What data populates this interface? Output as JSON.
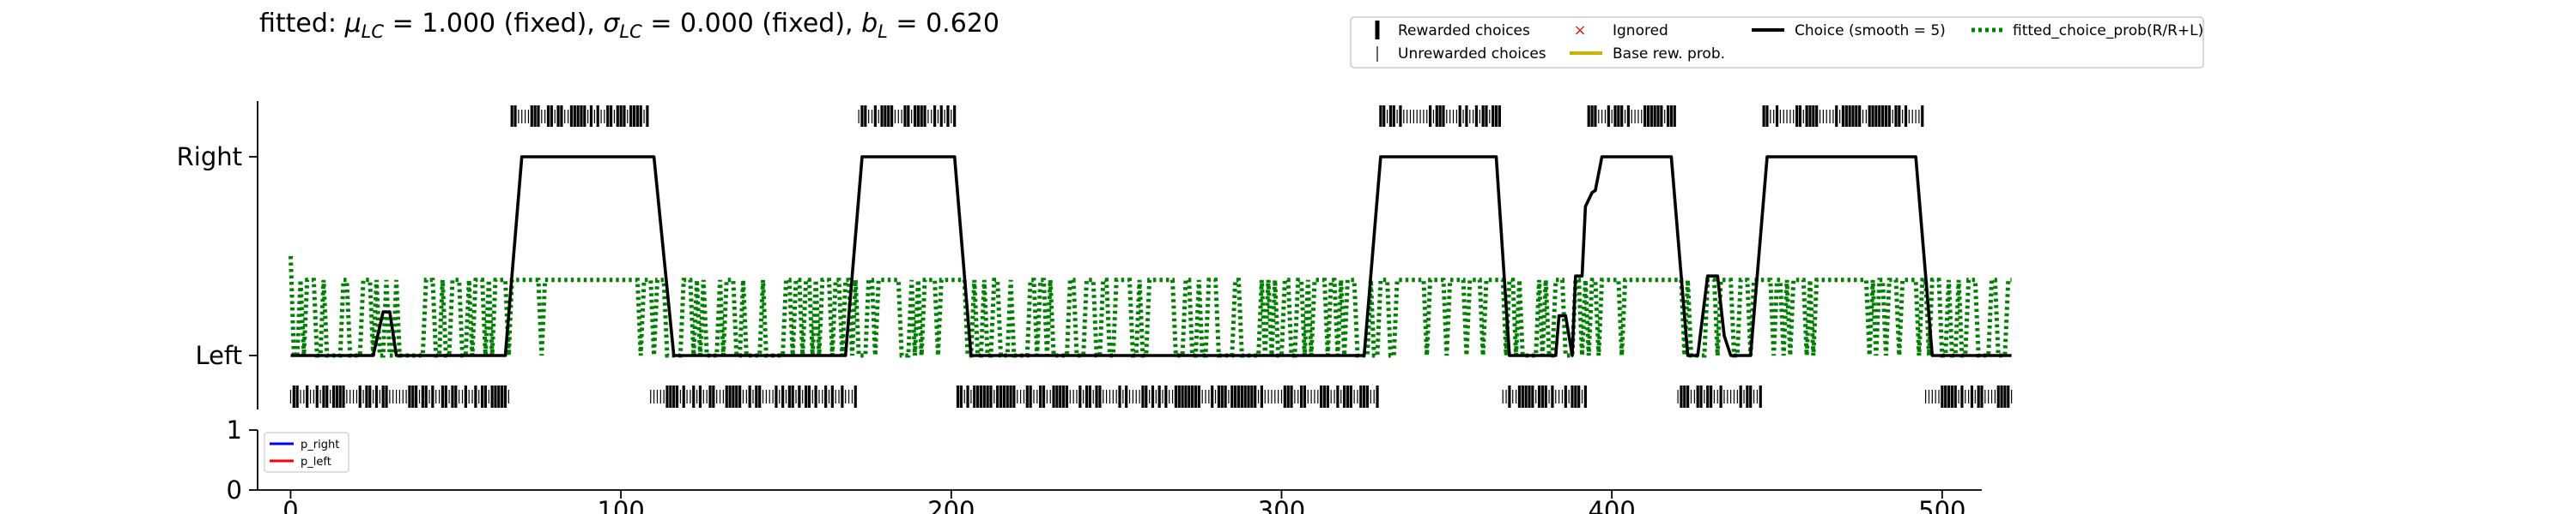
{
  "chart_data": [
    {
      "type": "line",
      "title": "fitted: μLC = 1.000 (fixed), σLC = 0.000 (fixed), bL = 0.620",
      "title_parts": {
        "p1": "fitted: ",
        "mu": "μ",
        "sub1": "LC",
        "p2": " = 1.000 (fixed), ",
        "sigma": "σ",
        "sub2": "LC",
        "p3": " = 0.000 (fixed), ",
        "b": "b",
        "sub3": "L",
        "p4": " = 0.620"
      },
      "xlabel": "",
      "ylabel": "",
      "xlim": [
        -10,
        512
      ],
      "ylim": [
        -0.28,
        1.28
      ],
      "yticks": [
        0,
        1
      ],
      "ytick_labels": [
        "Left",
        "Right"
      ],
      "legend_position": "top-right (above axes)",
      "legend": [
        {
          "label": "Rewarded choices",
          "color": "#000000",
          "marker": "thick-tick"
        },
        {
          "label": "Unrewarded choices",
          "color": "#000000",
          "marker": "thin-tick"
        },
        {
          "label": "Ignored",
          "color": "#d62728",
          "marker": "x"
        },
        {
          "label": "Base rew. prob.",
          "color": "#c8b400",
          "marker": "line"
        },
        {
          "label": "Choice (smooth = 5)",
          "color": "#000000",
          "marker": "line"
        },
        {
          "label": "fitted_choice_prob(R/R+L)",
          "color": "#008000",
          "marker": "dotted"
        }
      ],
      "choice_segments": [
        {
          "x0": 0,
          "x1": 64,
          "choice": "L"
        },
        {
          "x0": 67,
          "x1": 108,
          "choice": "R"
        },
        {
          "x0": 113,
          "x1": 169,
          "choice": "L"
        },
        {
          "x0": 172,
          "x1": 201,
          "choice": "R"
        },
        {
          "x0": 204,
          "x1": 327,
          "choice": "L"
        },
        {
          "x0": 330,
          "x1": 366,
          "choice": "R"
        },
        {
          "x0": 368,
          "x1": 391,
          "choice": "L"
        },
        {
          "x0": 393,
          "x1": 419,
          "choice": "R"
        },
        {
          "x0": 421,
          "x1": 443,
          "choice": "L"
        },
        {
          "x0": 446,
          "x1": 494,
          "choice": "R"
        },
        {
          "x0": 496,
          "x1": 522,
          "choice": "L"
        }
      ],
      "choice_smooth": {
        "name": "Choice (smooth = 5)",
        "points": [
          [
            0,
            0
          ],
          [
            25,
            0
          ],
          [
            28,
            0.22
          ],
          [
            30,
            0.22
          ],
          [
            32,
            0
          ],
          [
            65,
            0
          ],
          [
            70,
            1
          ],
          [
            110,
            1
          ],
          [
            116,
            0
          ],
          [
            168,
            0
          ],
          [
            173,
            1
          ],
          [
            201,
            1
          ],
          [
            206,
            0
          ],
          [
            325,
            0
          ],
          [
            330,
            1
          ],
          [
            365,
            1
          ],
          [
            369,
            0
          ],
          [
            383,
            0
          ],
          [
            384,
            0.2
          ],
          [
            386,
            0.2
          ],
          [
            388,
            0
          ],
          [
            389,
            0.4
          ],
          [
            391,
            0.4
          ],
          [
            392,
            0.75
          ],
          [
            394,
            0.82
          ],
          [
            395,
            0.83
          ],
          [
            397,
            1
          ],
          [
            418,
            1
          ],
          [
            423,
            0
          ],
          [
            426,
            0
          ],
          [
            429,
            0.4
          ],
          [
            432,
            0.4
          ],
          [
            434,
            0.1
          ],
          [
            436,
            0
          ],
          [
            442,
            0
          ],
          [
            447,
            1
          ],
          [
            492,
            1
          ],
          [
            497,
            0
          ],
          [
            521,
            0
          ]
        ]
      },
      "fitted_prob": {
        "name": "fitted_choice_prob(R/R+L)",
        "low": 0.0,
        "high": 0.38,
        "start": 0.5
      }
    },
    {
      "type": "line",
      "title": "",
      "xlim": [
        -10,
        512
      ],
      "ylim": [
        0,
        1
      ],
      "yticks": [
        0,
        1
      ],
      "ytick_labels": [
        "0",
        "1"
      ],
      "xticks": [
        0,
        100,
        200,
        300,
        400,
        500
      ],
      "xtick_labels": [
        "0",
        "100",
        "200",
        "300",
        "400",
        "500"
      ],
      "legend_position": "upper-left",
      "series": [
        {
          "name": "p_right",
          "color": "#0000ff",
          "values": []
        },
        {
          "name": "p_left",
          "color": "#ff0000",
          "values": []
        }
      ]
    }
  ]
}
